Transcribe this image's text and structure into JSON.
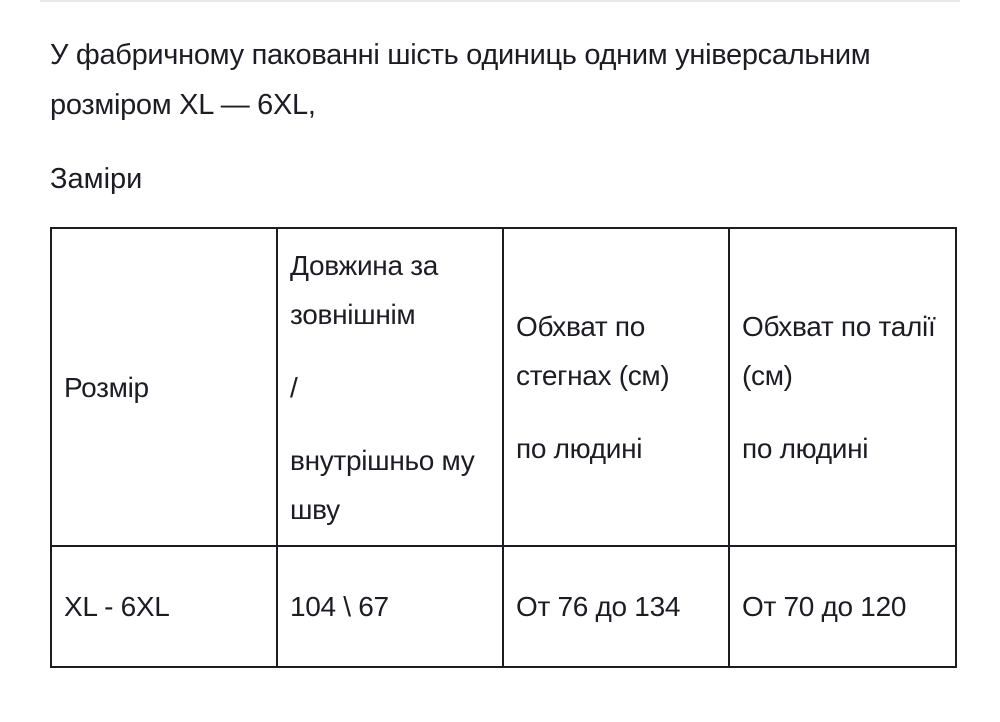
{
  "intro": "У фабричному пакованні шість одиниць одним універсальним розміром XL — 6XL,",
  "heading": "Заміри",
  "table": {
    "header": [
      [
        "Розмір"
      ],
      [
        "Довжина за зовнішнім",
        "/",
        "внутрішньо му шву"
      ],
      [
        "Обхват по стегнах (см)",
        "по людині"
      ],
      [
        "Обхват по талії (см)",
        "по людині"
      ]
    ],
    "rows": [
      [
        [
          "XL - 6XL"
        ],
        [
          "104 \\ 67"
        ],
        [
          "От 76 до 134"
        ],
        [
          "От 70 до 120"
        ]
      ]
    ]
  }
}
